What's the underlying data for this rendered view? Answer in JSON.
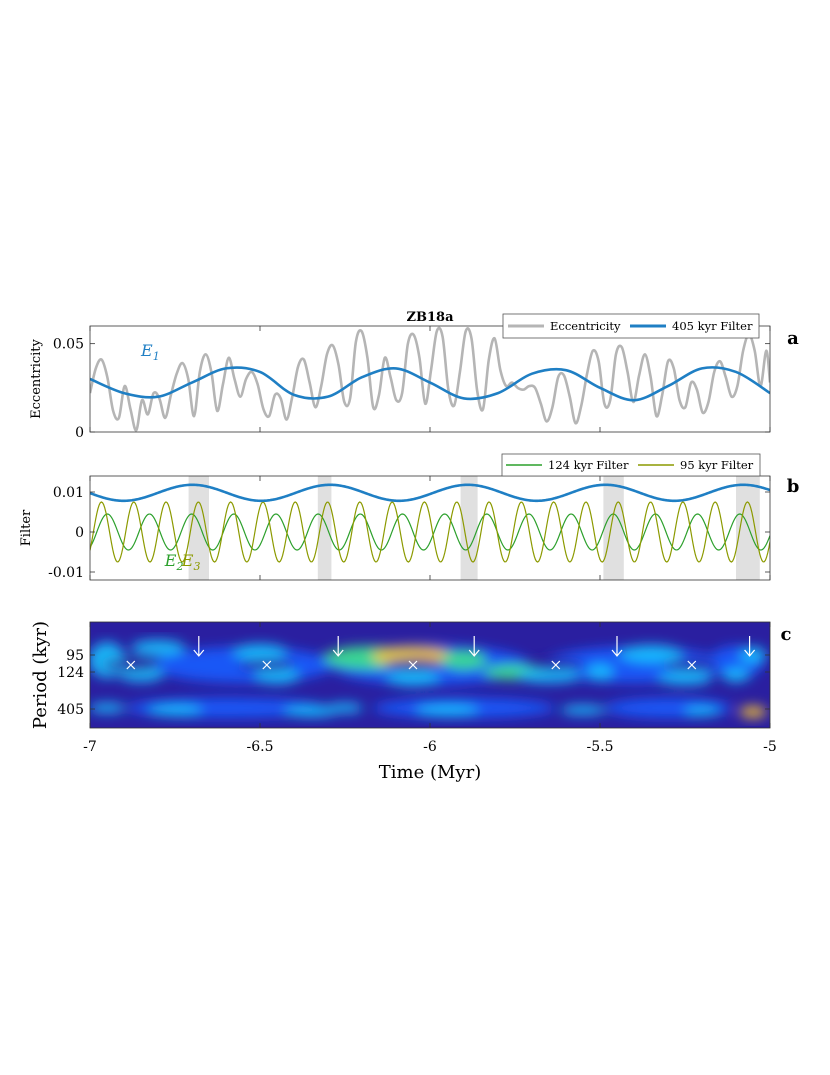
{
  "figure_title": "ZB18a",
  "chart_data": [
    {
      "panel": "a",
      "type": "line",
      "title": "ZB18a",
      "ylabel": "Eccentricity",
      "xlim": [
        -7,
        -5
      ],
      "ylim": [
        0,
        0.06
      ],
      "yticks": [
        0,
        0.05
      ],
      "ytick_labels": [
        "0",
        "0.05"
      ],
      "legend": {
        "position": "top-right",
        "entries": [
          "Eccentricity",
          "405 kyr Filter"
        ]
      },
      "annotations": [
        {
          "text": "E",
          "sub": "1",
          "x": -6.85,
          "y": 0.043
        }
      ],
      "series": [
        {
          "name": "Eccentricity",
          "color": "#b5b5b5",
          "x": [
            -7.0,
            -6.983,
            -6.966,
            -6.949,
            -6.932,
            -6.915,
            -6.898,
            -6.881,
            -6.864,
            -6.847,
            -6.83,
            -6.813,
            -6.796,
            -6.779,
            -6.762,
            -6.745,
            -6.728,
            -6.711,
            -6.694,
            -6.677,
            -6.66,
            -6.643,
            -6.626,
            -6.609,
            -6.592,
            -6.575,
            -6.558,
            -6.541,
            -6.524,
            -6.507,
            -6.49,
            -6.473,
            -6.456,
            -6.439,
            -6.422,
            -6.405,
            -6.388,
            -6.371,
            -6.354,
            -6.337,
            -6.32,
            -6.303,
            -6.286,
            -6.269,
            -6.252,
            -6.235,
            -6.218,
            -6.201,
            -6.184,
            -6.167,
            -6.15,
            -6.133,
            -6.116,
            -6.099,
            -6.082,
            -6.065,
            -6.048,
            -6.031,
            -6.014,
            -5.997,
            -5.98,
            -5.963,
            -5.946,
            -5.929,
            -5.912,
            -5.895,
            -5.878,
            -5.861,
            -5.844,
            -5.827,
            -5.81,
            -5.793,
            -5.776,
            -5.759,
            -5.742,
            -5.725,
            -5.708,
            -5.691,
            -5.674,
            -5.657,
            -5.64,
            -5.623,
            -5.606,
            -5.589,
            -5.572,
            -5.555,
            -5.538,
            -5.521,
            -5.504,
            -5.487,
            -5.47,
            -5.453,
            -5.436,
            -5.419,
            -5.402,
            -5.385,
            -5.368,
            -5.351,
            -5.334,
            -5.317,
            -5.3,
            -5.283,
            -5.266,
            -5.249,
            -5.232,
            -5.215,
            -5.198,
            -5.181,
            -5.164,
            -5.147,
            -5.13,
            -5.113,
            -5.096,
            -5.079,
            -5.062,
            -5.045,
            -5.028,
            -5.011,
            -5.0
          ],
          "y": [
            0.022,
            0.036,
            0.041,
            0.031,
            0.012,
            0.008,
            0.026,
            0.013,
            0.001,
            0.018,
            0.01,
            0.022,
            0.019,
            0.008,
            0.021,
            0.033,
            0.039,
            0.03,
            0.009,
            0.034,
            0.044,
            0.034,
            0.012,
            0.027,
            0.042,
            0.03,
            0.02,
            0.03,
            0.034,
            0.027,
            0.013,
            0.009,
            0.021,
            0.019,
            0.007,
            0.02,
            0.037,
            0.041,
            0.028,
            0.014,
            0.026,
            0.044,
            0.049,
            0.038,
            0.017,
            0.019,
            0.051,
            0.057,
            0.042,
            0.014,
            0.021,
            0.042,
            0.031,
            0.018,
            0.022,
            0.05,
            0.055,
            0.042,
            0.016,
            0.035,
            0.057,
            0.054,
            0.024,
            0.015,
            0.034,
            0.057,
            0.053,
            0.023,
            0.013,
            0.041,
            0.053,
            0.035,
            0.026,
            0.028,
            0.025,
            0.024,
            0.026,
            0.025,
            0.016,
            0.006,
            0.014,
            0.031,
            0.032,
            0.02,
            0.005,
            0.015,
            0.033,
            0.046,
            0.04,
            0.016,
            0.018,
            0.044,
            0.048,
            0.034,
            0.017,
            0.032,
            0.044,
            0.031,
            0.009,
            0.021,
            0.04,
            0.036,
            0.018,
            0.014,
            0.028,
            0.024,
            0.011,
            0.017,
            0.034,
            0.04,
            0.031,
            0.02,
            0.026,
            0.046,
            0.055,
            0.046,
            0.026,
            0.046,
            0.028
          ]
        },
        {
          "name": "405 kyr Filter",
          "color": "#1f7fc4",
          "x": [
            -7.0,
            -6.9,
            -6.8,
            -6.7,
            -6.6,
            -6.5,
            -6.4,
            -6.3,
            -6.2,
            -6.1,
            -6.0,
            -5.9,
            -5.8,
            -5.7,
            -5.6,
            -5.5,
            -5.4,
            -5.3,
            -5.2,
            -5.1,
            -5.0
          ],
          "y": [
            0.03,
            0.022,
            0.02,
            0.028,
            0.036,
            0.034,
            0.021,
            0.02,
            0.031,
            0.036,
            0.028,
            0.019,
            0.022,
            0.033,
            0.035,
            0.025,
            0.018,
            0.026,
            0.036,
            0.034,
            0.022
          ]
        }
      ]
    },
    {
      "panel": "b",
      "type": "line",
      "ylabel": "Filter",
      "xlim": [
        -7,
        -5
      ],
      "ylim": [
        -0.012,
        0.014
      ],
      "yticks": [
        -0.01,
        0,
        0.01
      ],
      "ytick_labels": [
        "-0.01",
        "0",
        "0.01"
      ],
      "legend": {
        "position": "top-right",
        "entries": [
          "124 kyr Filter",
          "95 kyr Filter"
        ]
      },
      "annotations": [
        {
          "text": "E",
          "sub": "2",
          "x": -6.78,
          "y": -0.0085
        },
        {
          "text": "E",
          "sub": "3",
          "x": -6.73,
          "y": -0.0085
        }
      ],
      "shaded_intervals": [
        [
          -6.71,
          -6.65
        ],
        [
          -6.33,
          -6.29
        ],
        [
          -5.91,
          -5.86
        ],
        [
          -5.49,
          -5.43
        ],
        [
          -5.1,
          -5.03
        ]
      ],
      "series": [
        {
          "name": "405 kyr envelope",
          "color": "#1f7fc4",
          "amplitude": 0.002,
          "period_myr": 0.405,
          "offset": 0.0098
        },
        {
          "name": "124 kyr Filter",
          "color": "#2ca02c",
          "period_myr": 0.124,
          "amplitude": 0.0045
        },
        {
          "name": "95 kyr Filter",
          "color": "#8c9a00",
          "period_myr": 0.095,
          "amplitude": 0.0075
        }
      ]
    },
    {
      "panel": "c",
      "type": "heatmap",
      "xlabel": "Time (Myr)",
      "ylabel": "Period (kyr)",
      "xlim": [
        -7,
        -5
      ],
      "xticks": [
        -7,
        -6.5,
        -6,
        -5.5,
        -5
      ],
      "xtick_labels": [
        "-7",
        "-6.5",
        "-6",
        "-5.5",
        "-5"
      ],
      "yticks": [
        95,
        124,
        405
      ],
      "ytick_labels": [
        "95",
        "124",
        "405"
      ],
      "minima_markers_x": [
        -6.88,
        -6.48,
        -6.05,
        -5.63,
        -5.23
      ],
      "arrows_x": [
        -6.68,
        -6.27,
        -5.87,
        -5.45,
        -5.06
      ],
      "colormap": [
        "#2a1fa0",
        "#1a5cff",
        "#19c3ff",
        "#3fe38a",
        "#f7c431"
      ]
    }
  ]
}
